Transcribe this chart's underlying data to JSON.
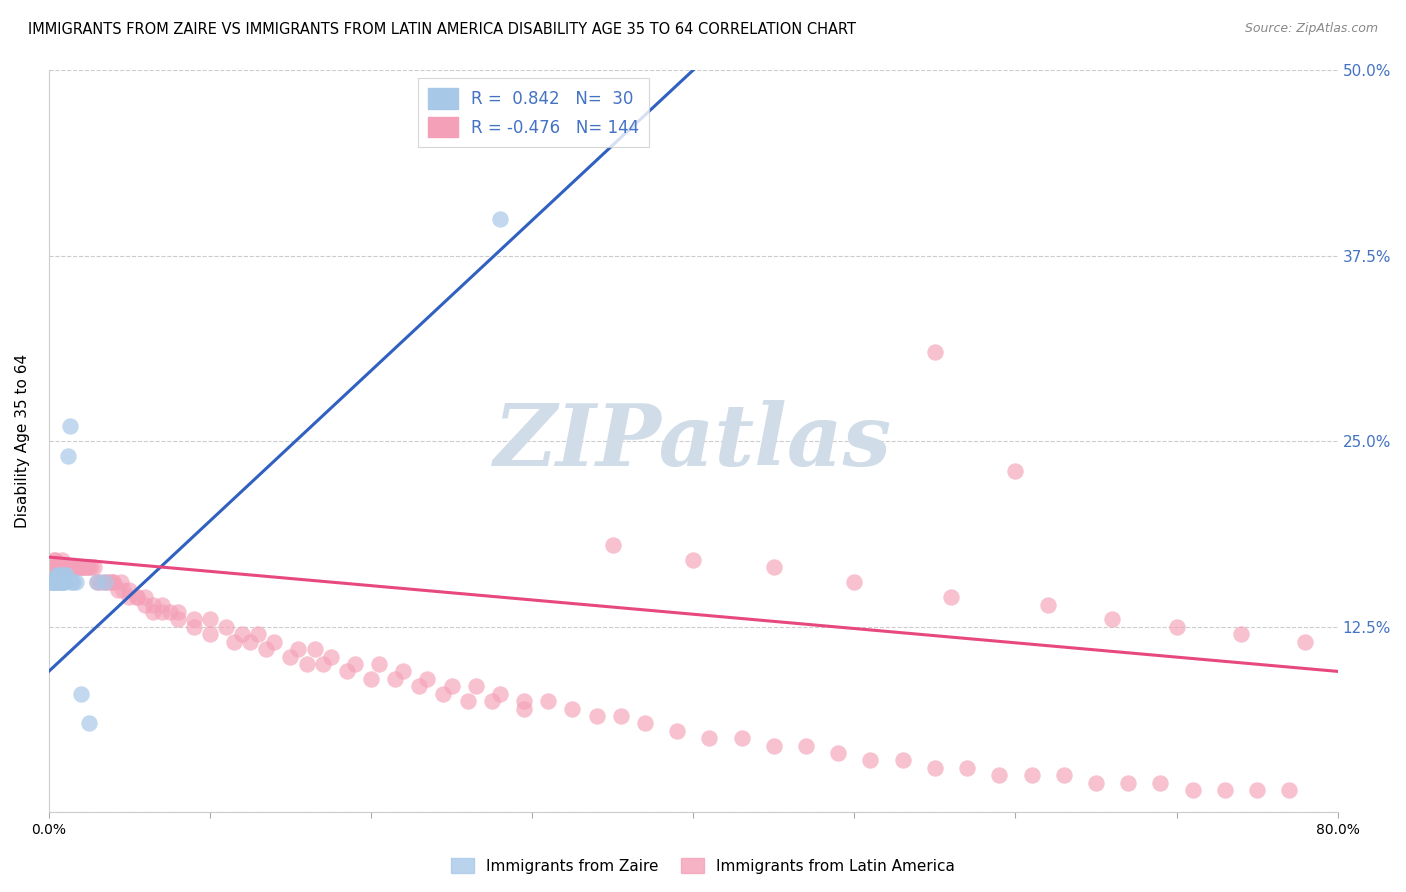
{
  "title": "IMMIGRANTS FROM ZAIRE VS IMMIGRANTS FROM LATIN AMERICA DISABILITY AGE 35 TO 64 CORRELATION CHART",
  "source": "Source: ZipAtlas.com",
  "ylabel": "Disability Age 35 to 64",
  "xlim": [
    0.0,
    0.8
  ],
  "ylim": [
    0.0,
    0.5
  ],
  "blue_color": "#a8c8e8",
  "pink_color": "#f4a0b8",
  "blue_line_color": "#3060c0",
  "pink_line_color": "#e84880",
  "background_color": "#ffffff",
  "grid_color": "#cccccc",
  "watermark_color": "#d0dce8",
  "right_axis_color": "#4472c4",
  "zaire_x": [
    0.001,
    0.002,
    0.002,
    0.003,
    0.003,
    0.004,
    0.004,
    0.005,
    0.005,
    0.006,
    0.006,
    0.007,
    0.007,
    0.008,
    0.008,
    0.009,
    0.009,
    0.01,
    0.01,
    0.011,
    0.012,
    0.013,
    0.014,
    0.015,
    0.017,
    0.02,
    0.025,
    0.03,
    0.035,
    0.28
  ],
  "zaire_y": [
    0.155,
    0.155,
    0.155,
    0.155,
    0.155,
    0.155,
    0.155,
    0.155,
    0.16,
    0.155,
    0.16,
    0.155,
    0.16,
    0.155,
    0.155,
    0.16,
    0.155,
    0.16,
    0.155,
    0.16,
    0.24,
    0.26,
    0.155,
    0.155,
    0.155,
    0.08,
    0.06,
    0.155,
    0.155,
    0.4
  ],
  "zaire_line_x": [
    0.0,
    0.4
  ],
  "zaire_line_y": [
    0.095,
    0.5
  ],
  "latin_x": [
    0.002,
    0.003,
    0.003,
    0.004,
    0.004,
    0.005,
    0.005,
    0.006,
    0.006,
    0.006,
    0.007,
    0.007,
    0.007,
    0.008,
    0.008,
    0.008,
    0.008,
    0.009,
    0.009,
    0.009,
    0.01,
    0.01,
    0.01,
    0.01,
    0.011,
    0.011,
    0.011,
    0.012,
    0.012,
    0.012,
    0.013,
    0.013,
    0.014,
    0.014,
    0.015,
    0.015,
    0.016,
    0.016,
    0.017,
    0.017,
    0.018,
    0.019,
    0.02,
    0.02,
    0.021,
    0.022,
    0.023,
    0.024,
    0.025,
    0.026,
    0.028,
    0.03,
    0.032,
    0.034,
    0.036,
    0.038,
    0.04,
    0.043,
    0.046,
    0.05,
    0.055,
    0.06,
    0.065,
    0.07,
    0.075,
    0.08,
    0.09,
    0.1,
    0.11,
    0.12,
    0.13,
    0.14,
    0.155,
    0.165,
    0.175,
    0.19,
    0.205,
    0.22,
    0.235,
    0.25,
    0.265,
    0.28,
    0.295,
    0.31,
    0.325,
    0.34,
    0.355,
    0.37,
    0.39,
    0.41,
    0.43,
    0.45,
    0.47,
    0.49,
    0.51,
    0.53,
    0.55,
    0.57,
    0.59,
    0.61,
    0.63,
    0.65,
    0.67,
    0.69,
    0.71,
    0.73,
    0.75,
    0.77,
    0.04,
    0.045,
    0.05,
    0.055,
    0.06,
    0.065,
    0.07,
    0.08,
    0.09,
    0.1,
    0.115,
    0.125,
    0.135,
    0.15,
    0.16,
    0.17,
    0.185,
    0.2,
    0.215,
    0.23,
    0.245,
    0.26,
    0.275,
    0.295,
    0.55,
    0.6,
    0.35,
    0.4,
    0.45,
    0.5,
    0.56,
    0.62,
    0.66,
    0.7,
    0.74,
    0.78
  ],
  "latin_y": [
    0.165,
    0.17,
    0.165,
    0.17,
    0.165,
    0.165,
    0.165,
    0.165,
    0.165,
    0.165,
    0.165,
    0.165,
    0.165,
    0.165,
    0.17,
    0.165,
    0.165,
    0.165,
    0.165,
    0.165,
    0.165,
    0.165,
    0.165,
    0.165,
    0.165,
    0.165,
    0.165,
    0.165,
    0.165,
    0.165,
    0.165,
    0.165,
    0.165,
    0.165,
    0.165,
    0.165,
    0.165,
    0.165,
    0.165,
    0.165,
    0.165,
    0.165,
    0.165,
    0.165,
    0.165,
    0.165,
    0.165,
    0.165,
    0.165,
    0.165,
    0.165,
    0.155,
    0.155,
    0.155,
    0.155,
    0.155,
    0.155,
    0.15,
    0.15,
    0.15,
    0.145,
    0.145,
    0.14,
    0.14,
    0.135,
    0.135,
    0.13,
    0.13,
    0.125,
    0.12,
    0.12,
    0.115,
    0.11,
    0.11,
    0.105,
    0.1,
    0.1,
    0.095,
    0.09,
    0.085,
    0.085,
    0.08,
    0.075,
    0.075,
    0.07,
    0.065,
    0.065,
    0.06,
    0.055,
    0.05,
    0.05,
    0.045,
    0.045,
    0.04,
    0.035,
    0.035,
    0.03,
    0.03,
    0.025,
    0.025,
    0.025,
    0.02,
    0.02,
    0.02,
    0.015,
    0.015,
    0.015,
    0.015,
    0.155,
    0.155,
    0.145,
    0.145,
    0.14,
    0.135,
    0.135,
    0.13,
    0.125,
    0.12,
    0.115,
    0.115,
    0.11,
    0.105,
    0.1,
    0.1,
    0.095,
    0.09,
    0.09,
    0.085,
    0.08,
    0.075,
    0.075,
    0.07,
    0.31,
    0.23,
    0.18,
    0.17,
    0.165,
    0.155,
    0.145,
    0.14,
    0.13,
    0.125,
    0.12,
    0.115
  ],
  "latin_line_x": [
    0.0,
    0.8
  ],
  "latin_line_y": [
    0.172,
    0.095
  ]
}
